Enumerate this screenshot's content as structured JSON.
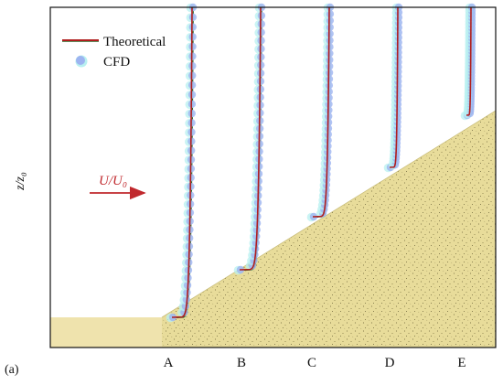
{
  "figure_label": "(a)",
  "chart_data": {
    "type": "line",
    "ylabel": "z/z₀",
    "flow_annotation": "U/U₀",
    "categories": [
      "A",
      "B",
      "C",
      "D",
      "E"
    ],
    "legend_position": "top-left",
    "grid": false,
    "series": [
      {
        "name": "Theoretical",
        "style": "line",
        "color": "#b01e1e"
      },
      {
        "name": "CFD",
        "style": "marker",
        "color": "#9db4f0"
      }
    ],
    "colors": {
      "frame": "#111111",
      "ground": "#efe3ad",
      "hill": "#e8dc9a",
      "arrow": "#c0282d",
      "line": "#b01e1e",
      "line_shadow": "#2a6a2a",
      "marker": "#9db4f0",
      "marker_halo": "#b8f0f0"
    }
  }
}
